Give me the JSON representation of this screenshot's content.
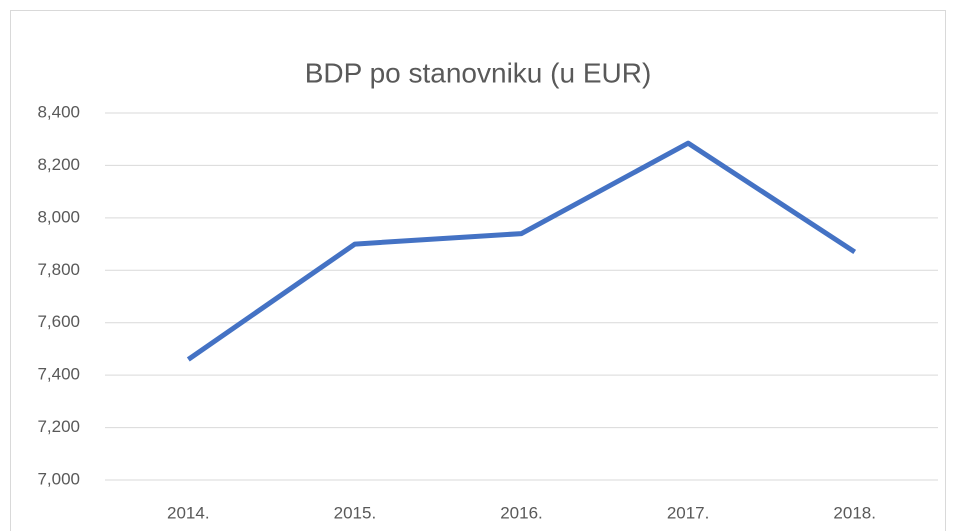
{
  "chart_data": {
    "type": "line",
    "title": "BDP po stanovniku (u EUR)",
    "categories": [
      "2014.",
      "2015.",
      "2016.",
      "2017.",
      "2018."
    ],
    "values": [
      7460,
      7900,
      7940,
      8285,
      7870
    ],
    "color": "#4472c4",
    "ylim": [
      7000,
      8400
    ],
    "yticks": [
      {
        "value": 7000,
        "label": "7,000"
      },
      {
        "value": 7200,
        "label": "7,200"
      },
      {
        "value": 7400,
        "label": "7,400"
      },
      {
        "value": 7600,
        "label": "7,600"
      },
      {
        "value": 7800,
        "label": "7,800"
      },
      {
        "value": 8000,
        "label": "8,000"
      },
      {
        "value": 8200,
        "label": "8,200"
      },
      {
        "value": 8400,
        "label": "8,400"
      }
    ],
    "grid": true
  }
}
